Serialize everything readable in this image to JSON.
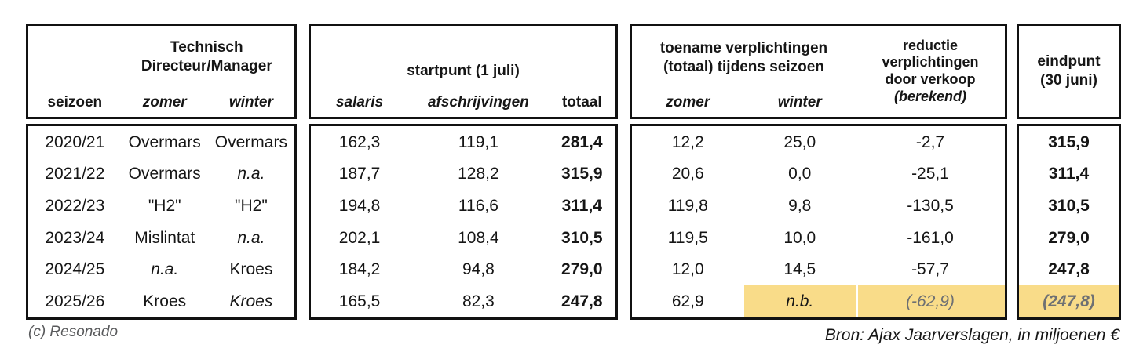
{
  "colors": {
    "highlight": "#F9DC89",
    "border": "#111111",
    "muted_text": "#6E7073",
    "credit_text": "#58595B"
  },
  "headers": {
    "manager_group": "Technisch\nDirecteur/Manager",
    "manager_cols": {
      "season": "seizoen",
      "zomer": "zomer",
      "winter": "winter"
    },
    "start_group": "startpunt (1 juli)",
    "start_cols": {
      "salaris": "salaris",
      "afschrijvingen": "afschrijvingen",
      "totaal": "totaal"
    },
    "toename_group": "toename verplichtingen\n(totaal) tijdens seizoen",
    "toename_cols": {
      "zomer": "zomer",
      "winter": "winter"
    },
    "reductie_main": "reductie\nverplichtingen\ndoor verkoop",
    "reductie_note": "(berekend)",
    "eindpunt_header": "eindpunt\n(30 juni)"
  },
  "rows": [
    {
      "season": {
        "t": "2020/21"
      },
      "td_zomer": {
        "t": "Overmars"
      },
      "td_winter": {
        "t": "Overmars"
      },
      "salaris": {
        "t": "162,3"
      },
      "afschrijvingen": {
        "t": "119,1"
      },
      "totaal": {
        "t": "281,4",
        "b": true
      },
      "toename_zomer": {
        "t": "12,2"
      },
      "toename_winter": {
        "t": "25,0"
      },
      "reductie": {
        "t": "-2,7"
      },
      "eindpunt": {
        "t": "315,9",
        "b": true
      }
    },
    {
      "season": {
        "t": "2021/22"
      },
      "td_zomer": {
        "t": "Overmars"
      },
      "td_winter": {
        "t": "n.a.",
        "i": true
      },
      "salaris": {
        "t": "187,7"
      },
      "afschrijvingen": {
        "t": "128,2"
      },
      "totaal": {
        "t": "315,9",
        "b": true
      },
      "toename_zomer": {
        "t": "20,6"
      },
      "toename_winter": {
        "t": "0,0"
      },
      "reductie": {
        "t": "-25,1"
      },
      "eindpunt": {
        "t": "311,4",
        "b": true
      }
    },
    {
      "season": {
        "t": "2022/23"
      },
      "td_zomer": {
        "t": "\"H2\""
      },
      "td_winter": {
        "t": "\"H2\""
      },
      "salaris": {
        "t": "194,8"
      },
      "afschrijvingen": {
        "t": "116,6"
      },
      "totaal": {
        "t": "311,4",
        "b": true
      },
      "toename_zomer": {
        "t": "119,8"
      },
      "toename_winter": {
        "t": "9,8"
      },
      "reductie": {
        "t": "-130,5"
      },
      "eindpunt": {
        "t": "310,5",
        "b": true
      }
    },
    {
      "season": {
        "t": "2023/24"
      },
      "td_zomer": {
        "t": "Mislintat"
      },
      "td_winter": {
        "t": "n.a.",
        "i": true
      },
      "salaris": {
        "t": "202,1"
      },
      "afschrijvingen": {
        "t": "108,4"
      },
      "totaal": {
        "t": "310,5",
        "b": true
      },
      "toename_zomer": {
        "t": "119,5"
      },
      "toename_winter": {
        "t": "10,0"
      },
      "reductie": {
        "t": "-161,0"
      },
      "eindpunt": {
        "t": "279,0",
        "b": true
      }
    },
    {
      "season": {
        "t": "2024/25"
      },
      "td_zomer": {
        "t": "n.a.",
        "i": true
      },
      "td_winter": {
        "t": "Kroes"
      },
      "salaris": {
        "t": "184,2"
      },
      "afschrijvingen": {
        "t": "94,8"
      },
      "totaal": {
        "t": "279,0",
        "b": true
      },
      "toename_zomer": {
        "t": "12,0"
      },
      "toename_winter": {
        "t": "14,5"
      },
      "reductie": {
        "t": "-57,7"
      },
      "eindpunt": {
        "t": "247,8",
        "b": true
      }
    },
    {
      "season": {
        "t": "2025/26"
      },
      "td_zomer": {
        "t": "Kroes"
      },
      "td_winter": {
        "t": "Kroes",
        "i": true
      },
      "salaris": {
        "t": "165,5"
      },
      "afschrijvingen": {
        "t": "82,3"
      },
      "totaal": {
        "t": "247,8",
        "b": true
      },
      "toename_zomer": {
        "t": "62,9"
      },
      "toename_winter": {
        "t": "n.b.",
        "i": true,
        "h": true
      },
      "reductie": {
        "t": "(-62,9)",
        "i": true,
        "g": true,
        "h": true,
        "hd": true
      },
      "eindpunt": {
        "t": "(247,8)",
        "b": true,
        "i": true,
        "g": true,
        "h": true
      }
    }
  ],
  "footer": {
    "credit": "(c) Resonado",
    "source": "Bron: Ajax Jaarverslagen, in miljoenen €"
  },
  "chart_data": {
    "type": "table",
    "title": "",
    "source": "Bron: Ajax Jaarverslagen, in miljoenen €",
    "column_groups": [
      "Technisch Directeur/Manager",
      "startpunt (1 juli)",
      "toename verplichtingen (totaal) tijdens seizoen",
      "reductie verplichtingen door verkoop (berekend)",
      "eindpunt (30 juni)"
    ],
    "columns": [
      "seizoen",
      "TD zomer",
      "TD winter",
      "salaris",
      "afschrijvingen",
      "totaal",
      "toename zomer",
      "toename winter",
      "reductie verplichtingen door verkoop (berekend)",
      "eindpunt (30 juni)"
    ],
    "rows": [
      [
        "2020/21",
        "Overmars",
        "Overmars",
        "162,3",
        "119,1",
        "281,4",
        "12,2",
        "25,0",
        "-2,7",
        "315,9"
      ],
      [
        "2021/22",
        "Overmars",
        "n.a.",
        "187,7",
        "128,2",
        "315,9",
        "20,6",
        "0,0",
        "-25,1",
        "311,4"
      ],
      [
        "2022/23",
        "\"H2\"",
        "\"H2\"",
        "194,8",
        "116,6",
        "311,4",
        "119,8",
        "9,8",
        "-130,5",
        "310,5"
      ],
      [
        "2023/24",
        "Mislintat",
        "n.a.",
        "202,1",
        "108,4",
        "310,5",
        "119,5",
        "10,0",
        "-161,0",
        "279,0"
      ],
      [
        "2024/25",
        "n.a.",
        "Kroes",
        "184,2",
        "94,8",
        "279,0",
        "12,0",
        "14,5",
        "-57,7",
        "247,8"
      ],
      [
        "2025/26",
        "Kroes",
        "Kroes",
        "165,5",
        "82,3",
        "247,8",
        "62,9",
        "n.b.",
        "(-62,9)",
        "(247,8)"
      ]
    ],
    "highlighted_cells": "2025/26: toename winter, reductie, eindpunt (yellow, estimated/not yet reported)"
  }
}
